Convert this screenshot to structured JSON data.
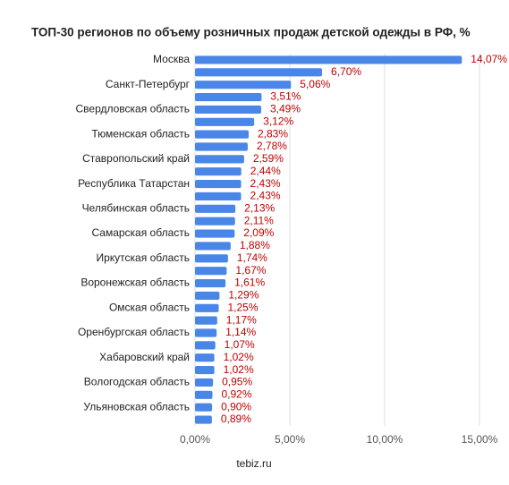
{
  "chart_data": {
    "type": "bar",
    "orientation": "horizontal",
    "title": "ТОП-30 регионов по объему розничных продаж детской одежды в РФ, %",
    "categories": [
      "Москва",
      null,
      "Санкт-Петербург",
      null,
      "Свердловская область",
      null,
      "Тюменская область",
      null,
      "Ставропольский край",
      null,
      "Республика Татарстан",
      null,
      "Челябинская область",
      null,
      "Самарская область",
      null,
      "Иркутская область",
      null,
      "Воронежская область",
      null,
      "Омская область",
      null,
      "Оренбургская область",
      null,
      "Хабаровский край",
      null,
      "Вологодская область",
      null,
      "Ульяновская область",
      null
    ],
    "values": [
      14.07,
      6.7,
      5.06,
      3.51,
      3.49,
      3.12,
      2.83,
      2.78,
      2.59,
      2.44,
      2.43,
      2.43,
      2.13,
      2.11,
      2.09,
      1.88,
      1.74,
      1.67,
      1.61,
      1.29,
      1.25,
      1.17,
      1.14,
      1.07,
      1.02,
      1.02,
      0.95,
      0.92,
      0.9,
      0.89
    ],
    "value_labels": [
      "14,07%",
      "6,70%",
      "5,06%",
      "3,51%",
      "3,49%",
      "3,12%",
      "2,83%",
      "2,78%",
      "2,59%",
      "2,44%",
      "2,43%",
      "2,43%",
      "2,13%",
      "2,11%",
      "2,09%",
      "1,88%",
      "1,74%",
      "1,67%",
      "1,61%",
      "1,29%",
      "1,25%",
      "1,17%",
      "1,14%",
      "1,07%",
      "1,02%",
      "1,02%",
      "0,95%",
      "0,92%",
      "0,90%",
      "0,89%"
    ],
    "color": "#4a86e8",
    "xlim": [
      0,
      15
    ],
    "xticks": [
      {
        "value": 0,
        "label": "0,00%"
      },
      {
        "value": 5,
        "label": "5,00%"
      },
      {
        "value": 10,
        "label": "10,00%"
      },
      {
        "value": 15,
        "label": "15,00%"
      }
    ],
    "grid": true,
    "source": "tebiz.ru"
  }
}
